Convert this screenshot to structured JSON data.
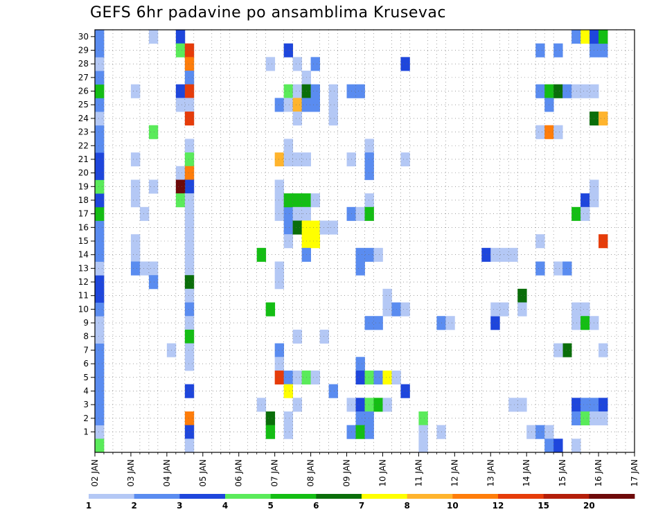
{
  "chart_data": {
    "type": "heatmap",
    "title": "GEFS 6hr padavine po ansamblima Krusevac",
    "x_tick_labels": [
      "02 JAN",
      "03 JAN",
      "04 JAN",
      "05 JAN",
      "06 JAN",
      "07 JAN",
      "08 JAN",
      "09 JAN",
      "10 JAN",
      "11 JAN",
      "12 JAN",
      "13 JAN",
      "14 JAN",
      "15 JAN",
      "16 JAN",
      "17 JAN"
    ],
    "y_tick_labels": [
      "1",
      "2",
      "3",
      "4",
      "5",
      "6",
      "7",
      "8",
      "9",
      "10",
      "11",
      "12",
      "13",
      "14",
      "15",
      "16",
      "17",
      "18",
      "19",
      "20",
      "21",
      "22",
      "23",
      "24",
      "25",
      "26",
      "27",
      "28",
      "29",
      "30"
    ],
    "ylim": [
      0,
      30
    ],
    "xlim_days": [
      0,
      15
    ],
    "grid": "dotted",
    "legend_placement": "bottom",
    "legend_labels": [
      "1",
      "2",
      "3",
      "4",
      "5",
      "6",
      "7",
      "8",
      "10",
      "12",
      "15",
      "20"
    ],
    "legend_colors": [
      "#b4c8f5",
      "#5a8cf0",
      "#1e46dc",
      "#5aeb5a",
      "#14be14",
      "#0a6e0a",
      "#ffff00",
      "#ffb42d",
      "#ff7d0a",
      "#e63c0a",
      "#b41e0a",
      "#6e0a0a"
    ],
    "threshold_bins": [
      {
        "min": 1,
        "max": 2,
        "color": "#b4c8f5"
      },
      {
        "min": 2,
        "max": 3,
        "color": "#5a8cf0"
      },
      {
        "min": 3,
        "max": 4,
        "color": "#1e46dc"
      },
      {
        "min": 4,
        "max": 5,
        "color": "#5aeb5a"
      },
      {
        "min": 5,
        "max": 6,
        "color": "#14be14"
      },
      {
        "min": 6,
        "max": 7,
        "color": "#0a6e0a"
      },
      {
        "min": 7,
        "max": 8,
        "color": "#ffff00"
      },
      {
        "min": 8,
        "max": 10,
        "color": "#ffb42d"
      },
      {
        "min": 10,
        "max": 12,
        "color": "#ff7d0a"
      },
      {
        "min": 12,
        "max": 15,
        "color": "#e63c0a"
      },
      {
        "min": 15,
        "max": 20,
        "color": "#b41e0a"
      },
      {
        "min": 20,
        "max": null,
        "color": "#6e0a0a"
      }
    ],
    "cells_note": "each cell: [day offset from 02 JAN (start of 6h step), member, precip value]",
    "cells": [
      [
        0,
        1,
        1.5
      ],
      [
        0,
        2,
        2.5
      ],
      [
        0,
        3,
        2.5
      ],
      [
        0,
        4,
        2.5
      ],
      [
        0,
        5,
        2.5
      ],
      [
        0,
        6,
        2.5
      ],
      [
        0,
        7,
        2.5
      ],
      [
        0,
        8,
        1.5
      ],
      [
        0,
        9,
        1.5
      ],
      [
        0,
        10,
        2.5
      ],
      [
        0,
        11,
        3.5
      ],
      [
        0,
        12,
        3.5
      ],
      [
        0,
        13,
        1.5
      ],
      [
        0,
        14,
        2.5
      ],
      [
        0,
        15,
        2.5
      ],
      [
        0,
        16,
        2.5
      ],
      [
        0,
        17,
        5.5
      ],
      [
        0,
        18,
        3.5
      ],
      [
        0,
        19,
        4.5
      ],
      [
        0,
        20,
        3.5
      ],
      [
        0,
        21,
        3.5
      ],
      [
        0,
        22,
        2.5
      ],
      [
        0,
        23,
        2.5
      ],
      [
        0,
        24,
        1.5
      ],
      [
        0,
        25,
        2.5
      ],
      [
        0,
        26,
        5.5
      ],
      [
        0,
        27,
        2.5
      ],
      [
        0,
        28,
        1.5
      ],
      [
        0,
        29,
        2.5
      ],
      [
        0,
        30,
        2.5
      ],
      [
        0,
        0,
        4.5
      ],
      [
        1,
        26,
        1.5
      ],
      [
        1,
        21,
        1.5
      ],
      [
        1,
        19,
        1.5
      ],
      [
        1,
        18,
        1.5
      ],
      [
        1,
        15,
        1.5
      ],
      [
        1,
        14,
        1.5
      ],
      [
        1,
        13,
        2.5
      ],
      [
        1.25,
        17,
        1.5
      ],
      [
        1.25,
        13,
        1.5
      ],
      [
        1.5,
        30,
        1.5
      ],
      [
        1.5,
        23,
        4.5
      ],
      [
        1.5,
        19,
        1.5
      ],
      [
        1.5,
        13,
        1.5
      ],
      [
        1.5,
        12,
        2.5
      ],
      [
        2,
        7,
        1.5
      ],
      [
        2.25,
        20,
        1.5
      ],
      [
        2.25,
        30,
        3.5
      ],
      [
        2.25,
        29,
        4.5
      ],
      [
        2.5,
        29,
        12.5
      ],
      [
        2.5,
        28,
        11
      ],
      [
        2.5,
        27,
        2.5
      ],
      [
        2.25,
        26,
        3.5
      ],
      [
        2.5,
        26,
        12.5
      ],
      [
        2.25,
        25,
        1.5
      ],
      [
        2.5,
        25,
        1.5
      ],
      [
        2.5,
        24,
        12.5
      ],
      [
        2.5,
        22,
        1.5
      ],
      [
        2.5,
        21,
        4.5
      ],
      [
        2.5,
        20,
        11
      ],
      [
        2.5,
        19,
        3.5
      ],
      [
        2.25,
        19,
        20.5
      ],
      [
        2.25,
        18,
        4.5
      ],
      [
        2.5,
        18,
        1.5
      ],
      [
        2.5,
        17,
        1.5
      ],
      [
        2.5,
        16,
        1.5
      ],
      [
        2.5,
        15,
        1.5
      ],
      [
        2.5,
        14,
        1.5
      ],
      [
        2.5,
        13,
        1.5
      ],
      [
        2.5,
        12,
        6.5
      ],
      [
        2.5,
        11,
        1.5
      ],
      [
        2.5,
        10,
        2.5
      ],
      [
        2.5,
        9,
        1.5
      ],
      [
        2.5,
        8,
        5.5
      ],
      [
        2.5,
        7,
        1.5
      ],
      [
        2.5,
        6,
        1.5
      ],
      [
        2.5,
        4,
        3.5
      ],
      [
        2.5,
        2,
        11
      ],
      [
        2.5,
        1,
        3.5
      ],
      [
        2.5,
        0,
        1.5
      ],
      [
        4.5,
        14,
        5.5
      ],
      [
        4.75,
        28,
        1.5
      ],
      [
        4.75,
        10,
        5.5
      ],
      [
        4.75,
        2,
        6.5
      ],
      [
        4.75,
        1,
        5.5
      ],
      [
        4.5,
        3,
        1.5
      ],
      [
        5,
        19,
        1.5
      ],
      [
        5,
        18,
        1.5
      ],
      [
        5,
        17,
        1.5
      ],
      [
        5,
        13,
        1.5
      ],
      [
        5,
        12,
        1.5
      ],
      [
        5,
        7,
        2.5
      ],
      [
        5,
        6,
        1.5
      ],
      [
        5,
        5,
        12.5
      ],
      [
        5,
        21,
        9
      ],
      [
        5,
        25,
        2.5
      ],
      [
        5.25,
        29,
        3.5
      ],
      [
        5.25,
        26,
        4.5
      ],
      [
        5.25,
        25,
        1.5
      ],
      [
        5.25,
        22,
        1.5
      ],
      [
        5.25,
        21,
        1.5
      ],
      [
        5.25,
        17,
        2.5
      ],
      [
        5.25,
        16,
        2.5
      ],
      [
        5.25,
        15,
        1.5
      ],
      [
        5.25,
        18,
        5.5
      ],
      [
        5.25,
        5,
        2.5
      ],
      [
        5.25,
        4,
        7.5
      ],
      [
        5.25,
        2,
        1.5
      ],
      [
        5.25,
        1,
        1.5
      ],
      [
        5.5,
        28,
        1.5
      ],
      [
        5.5,
        26,
        1.5
      ],
      [
        5.5,
        25,
        9
      ],
      [
        5.5,
        24,
        1.5
      ],
      [
        5.5,
        21,
        1.5
      ],
      [
        5.5,
        18,
        5.5
      ],
      [
        5.5,
        17,
        1.5
      ],
      [
        5.5,
        16,
        6.5
      ],
      [
        5.5,
        8,
        1.5
      ],
      [
        5.5,
        5,
        1.5
      ],
      [
        5.5,
        3,
        1.5
      ],
      [
        5.75,
        27,
        1.5
      ],
      [
        5.75,
        26,
        6.5
      ],
      [
        5.75,
        25,
        2.5
      ],
      [
        5.75,
        21,
        1.5
      ],
      [
        5.75,
        18,
        5.5
      ],
      [
        5.75,
        17,
        1.5
      ],
      [
        5.75,
        16,
        7.5
      ],
      [
        5.75,
        15,
        7.5
      ],
      [
        5.75,
        14,
        2.5
      ],
      [
        5.75,
        5,
        4.5
      ],
      [
        6,
        28,
        2.5
      ],
      [
        6,
        26,
        2.5
      ],
      [
        6,
        25,
        2.5
      ],
      [
        6,
        18,
        1.5
      ],
      [
        6,
        16,
        7.5
      ],
      [
        6,
        5,
        1.5
      ],
      [
        6,
        15,
        7.5
      ],
      [
        6.25,
        16,
        1.5
      ],
      [
        6.25,
        8,
        1.5
      ],
      [
        6.5,
        26,
        1.5
      ],
      [
        6.5,
        25,
        1.5
      ],
      [
        6.5,
        24,
        1.5
      ],
      [
        6.5,
        16,
        1.5
      ],
      [
        6.5,
        4,
        2.5
      ],
      [
        7,
        26,
        2.5
      ],
      [
        7,
        21,
        1.5
      ],
      [
        7,
        17,
        2.5
      ],
      [
        7,
        3,
        1.5
      ],
      [
        7,
        1,
        2.5
      ],
      [
        7.25,
        26,
        2.5
      ],
      [
        7.25,
        17,
        1.5
      ],
      [
        7.25,
        14,
        2.5
      ],
      [
        7.25,
        13,
        2.5
      ],
      [
        7.25,
        6,
        2.5
      ],
      [
        7.25,
        5,
        3.5
      ],
      [
        7.25,
        3,
        3.5
      ],
      [
        7.25,
        2,
        2.5
      ],
      [
        7.25,
        1,
        5.5
      ],
      [
        7.5,
        22,
        1.5
      ],
      [
        7.5,
        21,
        2.5
      ],
      [
        7.5,
        20,
        2.5
      ],
      [
        7.5,
        18,
        1.5
      ],
      [
        7.5,
        17,
        5.5
      ],
      [
        7.5,
        14,
        2.5
      ],
      [
        7.5,
        9,
        2.5
      ],
      [
        7.5,
        5,
        4.5
      ],
      [
        7.5,
        3,
        4.5
      ],
      [
        7.5,
        2,
        2.5
      ],
      [
        7.5,
        1,
        2.5
      ],
      [
        7.75,
        14,
        1.5
      ],
      [
        7.75,
        9,
        2.5
      ],
      [
        7.75,
        5,
        2.5
      ],
      [
        7.75,
        3,
        5.5
      ],
      [
        8,
        11,
        1.5
      ],
      [
        8,
        10,
        1.5
      ],
      [
        8,
        5,
        7.5
      ],
      [
        8,
        3,
        1.5
      ],
      [
        8.25,
        10,
        2.5
      ],
      [
        8.25,
        5,
        1.5
      ],
      [
        8.5,
        28,
        3.5
      ],
      [
        8.5,
        10,
        1.5
      ],
      [
        8.5,
        4,
        3.5
      ],
      [
        8.5,
        21,
        1.5
      ],
      [
        9,
        2,
        4.5
      ],
      [
        9,
        1,
        1.5
      ],
      [
        9,
        0,
        1.5
      ],
      [
        9.5,
        1,
        1.5
      ],
      [
        9.5,
        9,
        2.5
      ],
      [
        9.75,
        9,
        1.5
      ],
      [
        10.75,
        14,
        3.5
      ],
      [
        11,
        14,
        1.5
      ],
      [
        11,
        9,
        3.5
      ],
      [
        11,
        10,
        1.5
      ],
      [
        11.25,
        14,
        1.5
      ],
      [
        11.25,
        10,
        1.5
      ],
      [
        11.5,
        14,
        1.5
      ],
      [
        11.5,
        3,
        1.5
      ],
      [
        11.75,
        11,
        6.5
      ],
      [
        11.75,
        10,
        1.5
      ],
      [
        11.75,
        3,
        1.5
      ],
      [
        12,
        1,
        1.5
      ],
      [
        12.25,
        1,
        2.5
      ],
      [
        12.5,
        1,
        1.5
      ],
      [
        12.5,
        0,
        2.5
      ],
      [
        12.75,
        0,
        3.5
      ],
      [
        12.25,
        26,
        2.5
      ],
      [
        12.5,
        26,
        5.5
      ],
      [
        12.75,
        26,
        6.5
      ],
      [
        13,
        26,
        2.5
      ],
      [
        12.5,
        25,
        2.5
      ],
      [
        12.25,
        23,
        1.5
      ],
      [
        12.5,
        23,
        11
      ],
      [
        12.75,
        23,
        1.5
      ],
      [
        12.25,
        15,
        1.5
      ],
      [
        12.25,
        13,
        2.5
      ],
      [
        12.75,
        13,
        1.5
      ],
      [
        13,
        13,
        2.5
      ],
      [
        12.25,
        29,
        2.5
      ],
      [
        12.75,
        29,
        2.5
      ],
      [
        13,
        7,
        6.5
      ],
      [
        12.75,
        7,
        1.5
      ],
      [
        13.25,
        26,
        1.5
      ],
      [
        13.5,
        26,
        1.5
      ],
      [
        13.75,
        26,
        1.5
      ],
      [
        13.25,
        10,
        1.5
      ],
      [
        13.5,
        10,
        1.5
      ],
      [
        13.25,
        9,
        1.5
      ],
      [
        13.5,
        9,
        5.5
      ],
      [
        13.75,
        9,
        1.5
      ],
      [
        13.25,
        3,
        3.5
      ],
      [
        13.5,
        3,
        2.5
      ],
      [
        13.75,
        3,
        2.5
      ],
      [
        14,
        3,
        3.5
      ],
      [
        13.25,
        2,
        2.5
      ],
      [
        13.5,
        2,
        4.5
      ],
      [
        13.25,
        0,
        1.5
      ],
      [
        13.5,
        18,
        3.5
      ],
      [
        13.75,
        18,
        1.5
      ],
      [
        13.75,
        19,
        1.5
      ],
      [
        13.25,
        17,
        5.5
      ],
      [
        13.5,
        17,
        1.5
      ],
      [
        13.75,
        24,
        6.5
      ],
      [
        14,
        24,
        9
      ],
      [
        13.75,
        29,
        2.5
      ],
      [
        14,
        29,
        2.5
      ],
      [
        13.25,
        30,
        2.5
      ],
      [
        13.5,
        30,
        7.5
      ],
      [
        13.75,
        30,
        3.5
      ],
      [
        14,
        30,
        5.5
      ],
      [
        14,
        15,
        12.5
      ],
      [
        14,
        7,
        1.5
      ],
      [
        14,
        2,
        1.5
      ],
      [
        13.75,
        2,
        1.5
      ]
    ]
  }
}
